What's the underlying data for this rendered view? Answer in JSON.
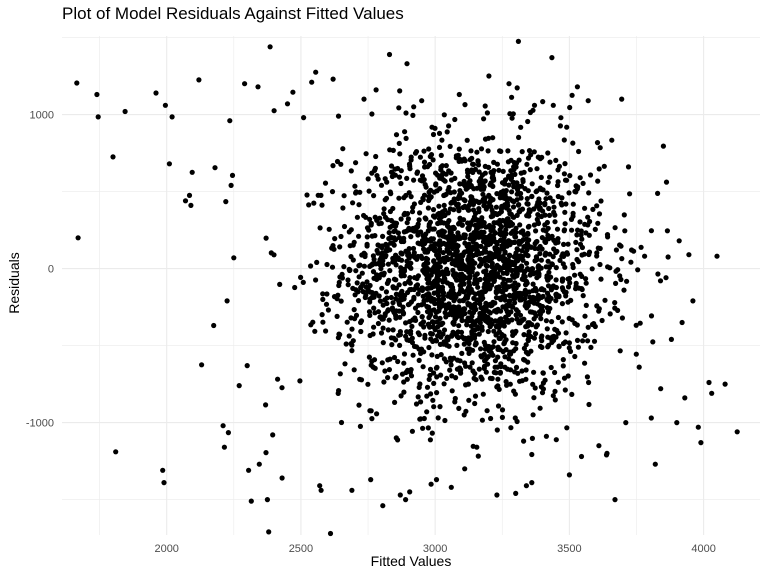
{
  "chart_data": {
    "type": "scatter",
    "title": "Plot of Model Residuals Against Fitted Values",
    "xlabel": "Fitted Values",
    "ylabel": "Residuals",
    "xlim": [
      1610,
      4210
    ],
    "ylim": [
      -1730,
      1510
    ],
    "x_ticks": [
      2000,
      2500,
      3000,
      3500,
      4000
    ],
    "x_tick_labels": [
      "2000",
      "2500",
      "3000",
      "3500",
      "4000"
    ],
    "y_ticks": [
      -1000,
      0,
      1000
    ],
    "y_tick_labels": [
      "-1000",
      "0",
      "1000"
    ],
    "grid": true,
    "point_color": "#000000",
    "points": [
      [
        1665,
        1205
      ],
      [
        1670,
        200
      ],
      [
        1740,
        1130
      ],
      [
        1745,
        985
      ],
      [
        1800,
        725
      ],
      [
        1810,
        -1190
      ],
      [
        1845,
        1020
      ],
      [
        1960,
        1140
      ],
      [
        1985,
        -1310
      ],
      [
        1990,
        -1390
      ],
      [
        1995,
        1060
      ],
      [
        2010,
        680
      ],
      [
        2020,
        985
      ],
      [
        2070,
        440
      ],
      [
        2085,
        475
      ],
      [
        2090,
        410
      ],
      [
        2095,
        625
      ],
      [
        2120,
        1225
      ],
      [
        2130,
        -625
      ],
      [
        2175,
        -370
      ],
      [
        2180,
        655
      ],
      [
        2210,
        -1020
      ],
      [
        2215,
        -1160
      ],
      [
        2220,
        435
      ],
      [
        2225,
        -210
      ],
      [
        2230,
        -1065
      ],
      [
        2235,
        960
      ],
      [
        2240,
        540
      ],
      [
        2245,
        605
      ],
      [
        2250,
        70
      ],
      [
        2270,
        -760
      ],
      [
        2290,
        1200
      ],
      [
        2300,
        -630
      ],
      [
        2305,
        -1310
      ],
      [
        2315,
        -1510
      ],
      [
        2340,
        1180
      ],
      [
        2345,
        -1270
      ],
      [
        2370,
        -1195
      ],
      [
        2375,
        -1500
      ],
      [
        2380,
        -1710
      ],
      [
        2385,
        1440
      ],
      [
        2395,
        -1080
      ],
      [
        2400,
        1025
      ],
      [
        2430,
        -1360
      ],
      [
        2450,
        1070
      ],
      [
        2470,
        1145
      ],
      [
        2510,
        980
      ],
      [
        2540,
        1210
      ],
      [
        2555,
        1275
      ],
      [
        2570,
        -1410
      ],
      [
        2575,
        -1440
      ],
      [
        2610,
        -1720
      ],
      [
        2620,
        1230
      ],
      [
        2640,
        990
      ],
      [
        2690,
        -1440
      ],
      [
        2735,
        1100
      ],
      [
        2760,
        -1370
      ],
      [
        2780,
        1160
      ],
      [
        2805,
        -1540
      ],
      [
        2830,
        1390
      ],
      [
        2870,
        -1470
      ],
      [
        2890,
        -1500
      ],
      [
        2895,
        1330
      ],
      [
        2905,
        -1450
      ],
      [
        2920,
        1050
      ],
      [
        2950,
        1090
      ],
      [
        2985,
        -1400
      ],
      [
        3005,
        -1370
      ],
      [
        3060,
        -1420
      ],
      [
        3090,
        1130
      ],
      [
        3110,
        -1300
      ],
      [
        3155,
        -1160
      ],
      [
        3200,
        1250
      ],
      [
        3230,
        -1470
      ],
      [
        3275,
        1200
      ],
      [
        3300,
        -1460
      ],
      [
        3310,
        1475
      ],
      [
        3340,
        -1410
      ],
      [
        3360,
        -1390
      ],
      [
        3370,
        1060
      ],
      [
        3435,
        1370
      ],
      [
        3440,
        1060
      ],
      [
        3500,
        -1340
      ],
      [
        3510,
        1125
      ],
      [
        3530,
        1180
      ],
      [
        3545,
        -1220
      ],
      [
        3570,
        1090
      ],
      [
        3610,
        -1150
      ],
      [
        3640,
        -1200
      ],
      [
        3670,
        -1500
      ],
      [
        3695,
        1100
      ],
      [
        3710,
        -1000
      ],
      [
        3720,
        660
      ],
      [
        3760,
        -640
      ],
      [
        3780,
        80
      ],
      [
        3805,
        -970
      ],
      [
        3820,
        -1270
      ],
      [
        3840,
        -780
      ],
      [
        3850,
        795
      ],
      [
        3865,
        245
      ],
      [
        3880,
        -460
      ],
      [
        3900,
        -1000
      ],
      [
        3920,
        -350
      ],
      [
        3930,
        -840
      ],
      [
        3945,
        90
      ],
      [
        3960,
        -210
      ],
      [
        3980,
        -1030
      ],
      [
        3990,
        -1130
      ],
      [
        4020,
        -740
      ],
      [
        4030,
        -810
      ],
      [
        4050,
        80
      ],
      [
        4080,
        -750
      ],
      [
        4125,
        -1060
      ]
    ],
    "cloud": {
      "count": 2500,
      "x_mean": 3140,
      "x_sd": 240,
      "y_mean": 0,
      "y_sd": 420,
      "x_range": [
        2300,
        3950
      ],
      "y_range": [
        -1250,
        1200
      ]
    }
  }
}
